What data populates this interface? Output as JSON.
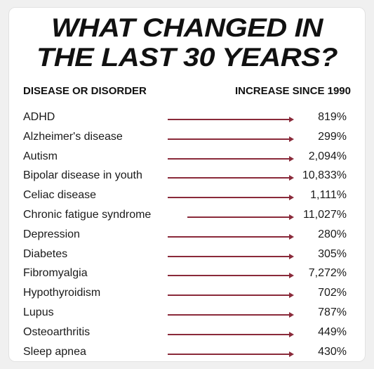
{
  "title": {
    "line1": "WHAT CHANGED IN",
    "line2": "THE LAST 30 YEARS?"
  },
  "columns": {
    "left": "DISEASE OR DISORDER",
    "right": "INCREASE SINCE 1990"
  },
  "colors": {
    "arrow": "#8a2a3a",
    "text": "#111111"
  },
  "rows": [
    {
      "name": "ADHD",
      "value": "819%"
    },
    {
      "name": "Alzheimer's disease",
      "value": "299%"
    },
    {
      "name": "Autism",
      "value": "2,094%"
    },
    {
      "name": "Bipolar disease in youth",
      "value": "10,833%"
    },
    {
      "name": "Celiac disease",
      "value": "1,111%"
    },
    {
      "name": "Chronic fatigue syndrome",
      "value": "11,027%"
    },
    {
      "name": "Depression",
      "value": "280%"
    },
    {
      "name": "Diabetes",
      "value": "305%"
    },
    {
      "name": "Fibromyalgia",
      "value": "7,272%"
    },
    {
      "name": "Hypothyroidism",
      "value": "702%"
    },
    {
      "name": "Lupus",
      "value": "787%"
    },
    {
      "name": "Osteoarthritis",
      "value": "449%"
    },
    {
      "name": "Sleep apnea",
      "value": "430%"
    }
  ]
}
